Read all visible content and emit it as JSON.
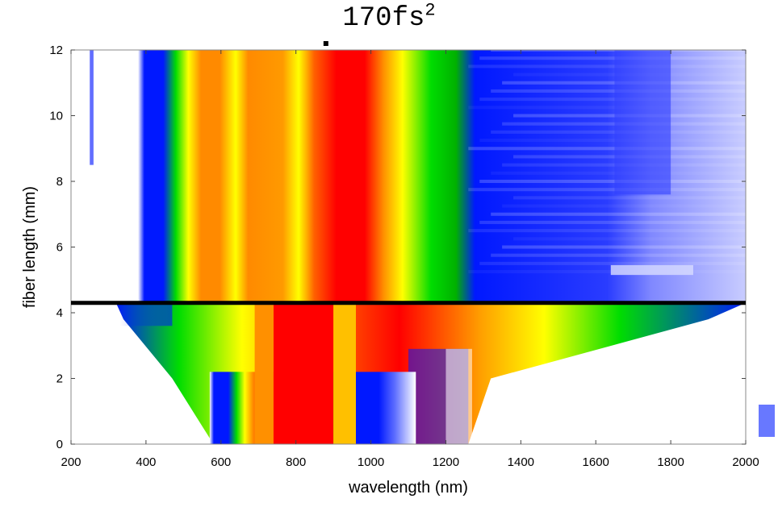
{
  "chart_data": {
    "type": "heatmap",
    "title": "170fs",
    "title_superscript": "2",
    "xlabel": "wavelength (nm)",
    "ylabel": "fiber length (mm)",
    "xlim": [
      200,
      2000
    ],
    "ylim": [
      0,
      12
    ],
    "xticks": [
      200,
      400,
      600,
      800,
      1000,
      1200,
      1400,
      1600,
      1800,
      2000
    ],
    "yticks": [
      0,
      2,
      4,
      6,
      8,
      10,
      12
    ],
    "colormap": [
      "#ffffff",
      "#0010ff",
      "#00e000",
      "#ffff00",
      "#ff9a00",
      "#ff0000"
    ],
    "marker_line": {
      "y": 4.3,
      "color": "#000000"
    },
    "spectral_envelope": [
      {
        "length": 0,
        "min_wavelength": 580,
        "max_wavelength": 1260,
        "peak_wavelength": 790
      },
      {
        "length": 2,
        "min_wavelength": 470,
        "max_wavelength": 1320,
        "peak_wavelength": 810
      },
      {
        "length": 3.8,
        "min_wavelength": 340,
        "max_wavelength": 1900,
        "peak_wavelength": 850
      },
      {
        "length": 4.3,
        "min_wavelength": 320,
        "max_wavelength": 2000,
        "peak_wavelength": 880
      },
      {
        "length": 6,
        "min_wavelength": 320,
        "max_wavelength": 2000,
        "peak_wavelength": 890
      },
      {
        "length": 12,
        "min_wavelength": 320,
        "max_wavelength": 2000,
        "peak_wavelength": 890
      }
    ]
  }
}
